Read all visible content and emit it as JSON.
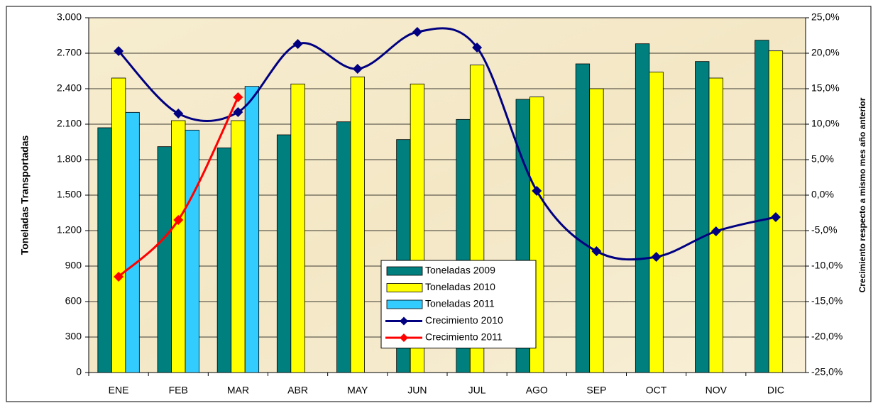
{
  "chart_data": {
    "type": "bar",
    "y_label": "Toneladas Transportadas",
    "y2_label": "Crecimiento respecto a mismo mes año anterior",
    "categories": [
      "ENE",
      "FEB",
      "MAR",
      "ABR",
      "MAY",
      "JUN",
      "JUL",
      "AGO",
      "SEP",
      "OCT",
      "NOV",
      "DIC"
    ],
    "series": [
      {
        "name": "Toneladas 2009",
        "color": "#007f7f",
        "values": [
          2070,
          1910,
          1900,
          2010,
          2120,
          1970,
          2140,
          2310,
          2610,
          2780,
          2630,
          2810
        ]
      },
      {
        "name": "Toneladas 2010",
        "color": "#ffff00",
        "values": [
          2490,
          2130,
          2130,
          2440,
          2500,
          2440,
          2600,
          2330,
          2400,
          2540,
          2490,
          2720
        ]
      },
      {
        "name": "Toneladas 2011",
        "color": "#33ccff",
        "values": [
          2200,
          2050,
          2420,
          null,
          null,
          null,
          null,
          null,
          null,
          null,
          null,
          null
        ]
      },
      {
        "name": "Crecimiento 2010",
        "color": "#000080",
        "type": "line",
        "axis": "y2",
        "values": [
          20.3,
          11.5,
          11.7,
          21.3,
          17.8,
          23.0,
          20.8,
          0.6,
          -7.9,
          -8.7,
          -5.1,
          -3.1
        ]
      },
      {
        "name": "Crecimiento 2011",
        "color": "#ff0000",
        "type": "line",
        "axis": "y2",
        "values": [
          -11.5,
          -3.5,
          13.8,
          null,
          null,
          null,
          null,
          null,
          null,
          null,
          null,
          null
        ]
      }
    ],
    "ylim": [
      0,
      3000
    ],
    "yticks": [
      0,
      300,
      600,
      900,
      {
        "value": 1200,
        "label": "1.200"
      },
      {
        "value": 1500,
        "label": "1.500"
      },
      {
        "value": 1800,
        "label": "1.800"
      },
      {
        "value": 2100,
        "label": "2.100"
      },
      {
        "value": 2400,
        "label": "2.400"
      },
      {
        "value": 2700,
        "label": "2.700"
      },
      {
        "value": 3000,
        "label": "3.000"
      }
    ],
    "y2lim": [
      -25,
      25
    ],
    "y2ticks": [
      {
        "value": -25,
        "label": "-25,0%"
      },
      {
        "value": -20,
        "label": "-20,0%"
      },
      {
        "value": -15,
        "label": "-15,0%"
      },
      {
        "value": -10,
        "label": "-10,0%"
      },
      {
        "value": -5,
        "label": "-5,0%"
      },
      {
        "value": 0,
        "label": "0,0%"
      },
      {
        "value": 5,
        "label": "5,0%"
      },
      {
        "value": 10,
        "label": "10,0%"
      },
      {
        "value": 15,
        "label": "15,0%"
      },
      {
        "value": 20,
        "label": "20,0%"
      },
      {
        "value": 25,
        "label": "25,0%"
      }
    ],
    "grid": true,
    "legend": "center"
  }
}
